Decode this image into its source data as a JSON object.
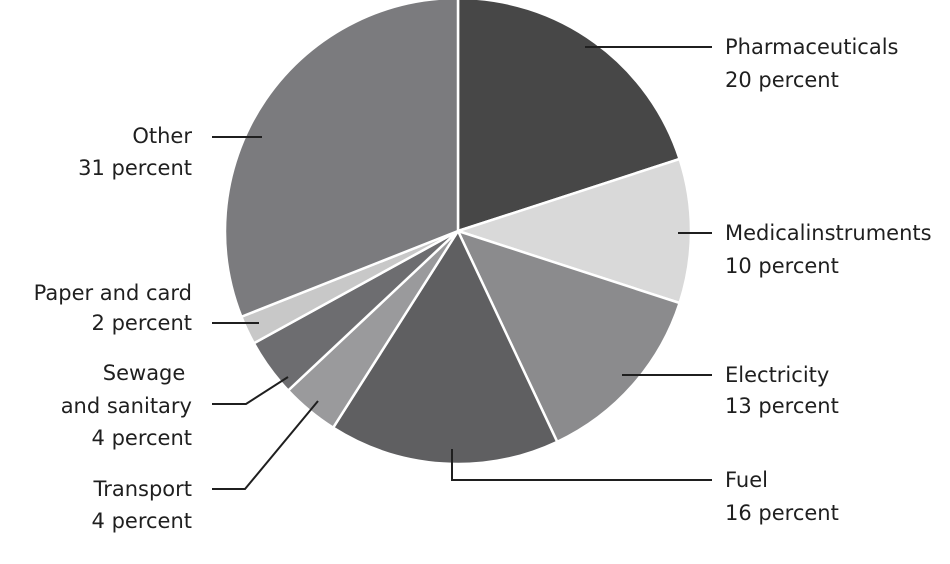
{
  "chart_data": {
    "type": "pie",
    "title": "",
    "legend": "none",
    "slices": [
      {
        "name": "Pharmaceuticals",
        "value": 20,
        "value_label": "20 percent",
        "color": "#474747"
      },
      {
        "name": "Medicalinstruments",
        "value": 10,
        "value_label": "10 percent",
        "color": "#d9d9d9"
      },
      {
        "name": "Electricity",
        "value": 13,
        "value_label": "13 percent",
        "color": "#8b8b8d"
      },
      {
        "name": "Fuel",
        "value": 16,
        "value_label": "16 percent",
        "color": "#5f5f61"
      },
      {
        "name": "Transport",
        "value": 4,
        "value_label": "4 percent",
        "color": "#9a9a9c"
      },
      {
        "name": "Sewage and sanitary",
        "value": 4,
        "value_label": "4 percent",
        "color": "#6d6d70"
      },
      {
        "name": "Paper and card",
        "value": 2,
        "value_label": "2 percent",
        "color": "#c8c8c8"
      },
      {
        "name": "Other",
        "value": 31,
        "value_label": "31 percent",
        "color": "#7b7b7e"
      }
    ]
  }
}
